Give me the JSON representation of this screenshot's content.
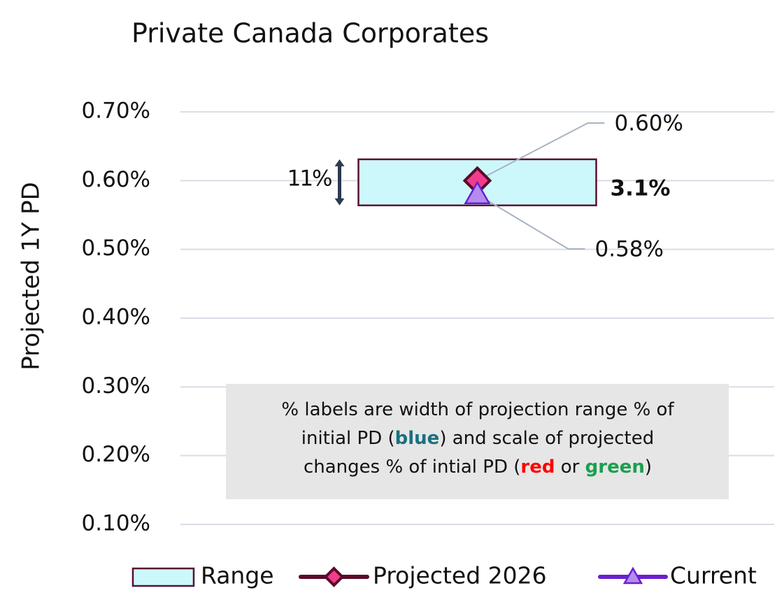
{
  "chart_data": {
    "type": "range",
    "title": "Private Canada Corporates",
    "y_label": "Projected 1Y PD",
    "categories": [
      null
    ],
    "ylim": [
      0.1,
      0.7
    ],
    "yticks": [
      {
        "value": 0.1,
        "label": "0.10%"
      },
      {
        "value": 0.2,
        "label": "0.20%"
      },
      {
        "value": 0.3,
        "label": "0.30%"
      },
      {
        "value": 0.4,
        "label": "0.40%"
      },
      {
        "value": 0.5,
        "label": "0.50%"
      },
      {
        "value": 0.6,
        "label": "0.60%"
      },
      {
        "value": 0.7,
        "label": "0.70%"
      }
    ],
    "grid": true,
    "legend": "bottom",
    "series": [
      {
        "name": "Range",
        "color": "#ccf8fc",
        "edge_color": "#5a1030",
        "low": [
          0.564
        ],
        "high": [
          0.631
        ]
      },
      {
        "name": "Projected 2026",
        "color": "#5a0a2a",
        "marker_color": "#f03c8c",
        "marker": "diamond",
        "values": [
          0.6
        ],
        "value_labels": [
          "0.60%"
        ]
      },
      {
        "name": "Current",
        "color": "#6a1fd0",
        "marker_color": "#b48cf0",
        "marker": "triangle",
        "values": [
          0.58
        ],
        "value_labels": [
          "0.58%"
        ]
      }
    ],
    "annotations": {
      "range_width": {
        "text": "11%",
        "color": "#000000"
      },
      "change": {
        "text": "3.1%",
        "color": "#ff0000"
      }
    },
    "note": {
      "lines": [
        [
          {
            "text": "% labels are width of projection range % of"
          }
        ],
        [
          {
            "text": "initial PD ("
          },
          {
            "text": "blue",
            "color": "#1a7080"
          },
          {
            "text": ") and scale of projected"
          }
        ],
        [
          {
            "text": "changes % of intial PD ("
          },
          {
            "text": "red",
            "color": "#ff0000"
          },
          {
            "text": " or "
          },
          {
            "text": "green",
            "color": "#1aa050"
          },
          {
            "text": ")"
          }
        ]
      ]
    }
  }
}
